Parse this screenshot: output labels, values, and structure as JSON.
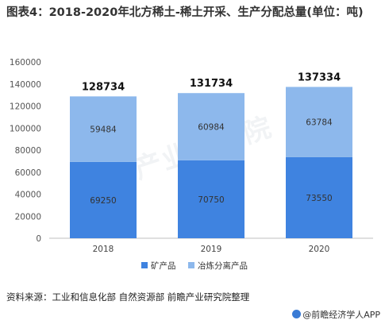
{
  "title": "图表4：2018-2020年北方稀土-稀土开采、生产分配总量(单位：吨)",
  "source": "资料来源：工业和信息化部 自然资源部 前瞻产业研究院整理",
  "brand": "@前瞻经济学人APP",
  "watermark": "前瞻产业研究院",
  "chart_data": {
    "type": "bar",
    "stacked": true,
    "categories": [
      "2018",
      "2019",
      "2020"
    ],
    "series": [
      {
        "name": "矿产品",
        "values": [
          69250,
          70750,
          73550
        ],
        "color": "#3f83e0"
      },
      {
        "name": "冶炼分离产品",
        "values": [
          59484,
          60984,
          63784
        ],
        "color": "#8db8ec"
      }
    ],
    "totals": [
      128734,
      131734,
      137334
    ],
    "yticks": [
      0,
      20000,
      40000,
      60000,
      80000,
      100000,
      120000,
      140000,
      160000
    ],
    "ylim": [
      0,
      160000
    ],
    "legend": "bottom",
    "grid": false
  }
}
